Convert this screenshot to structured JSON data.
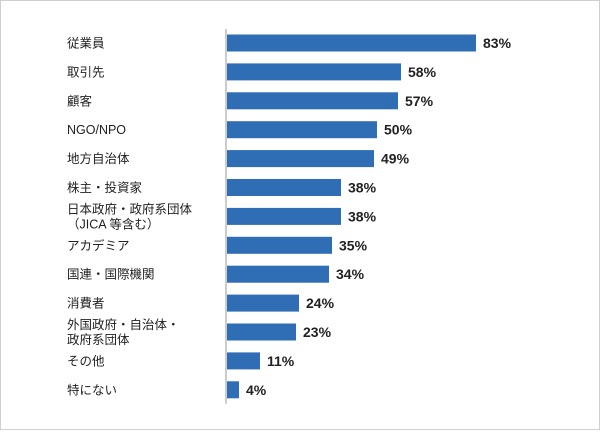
{
  "chart_data": {
    "type": "bar",
    "orientation": "horizontal",
    "categories": [
      [
        "従業員"
      ],
      [
        "取引先"
      ],
      [
        "顧客"
      ],
      [
        "NGO/NPO"
      ],
      [
        "地方自治体"
      ],
      [
        "株主・投資家"
      ],
      [
        "日本政府・政府系団体",
        "（JICA 等含む）"
      ],
      [
        "アカデミア"
      ],
      [
        "国連・国際機関"
      ],
      [
        "消費者"
      ],
      [
        "外国政府・自治体・",
        "政府系団体"
      ],
      [
        "その他"
      ],
      [
        "特にない"
      ]
    ],
    "values": [
      83,
      58,
      57,
      50,
      49,
      38,
      38,
      35,
      34,
      24,
      23,
      11,
      4
    ],
    "value_labels": [
      "83%",
      "58%",
      "57%",
      "50%",
      "49%",
      "38%",
      "38%",
      "35%",
      "34%",
      "24%",
      "23%",
      "11%",
      "4%"
    ],
    "unit": "%",
    "xlim": [
      0,
      100
    ],
    "bar_color": "#2f6db5",
    "axis_color": "#999999",
    "grid": false,
    "legend": "none"
  }
}
